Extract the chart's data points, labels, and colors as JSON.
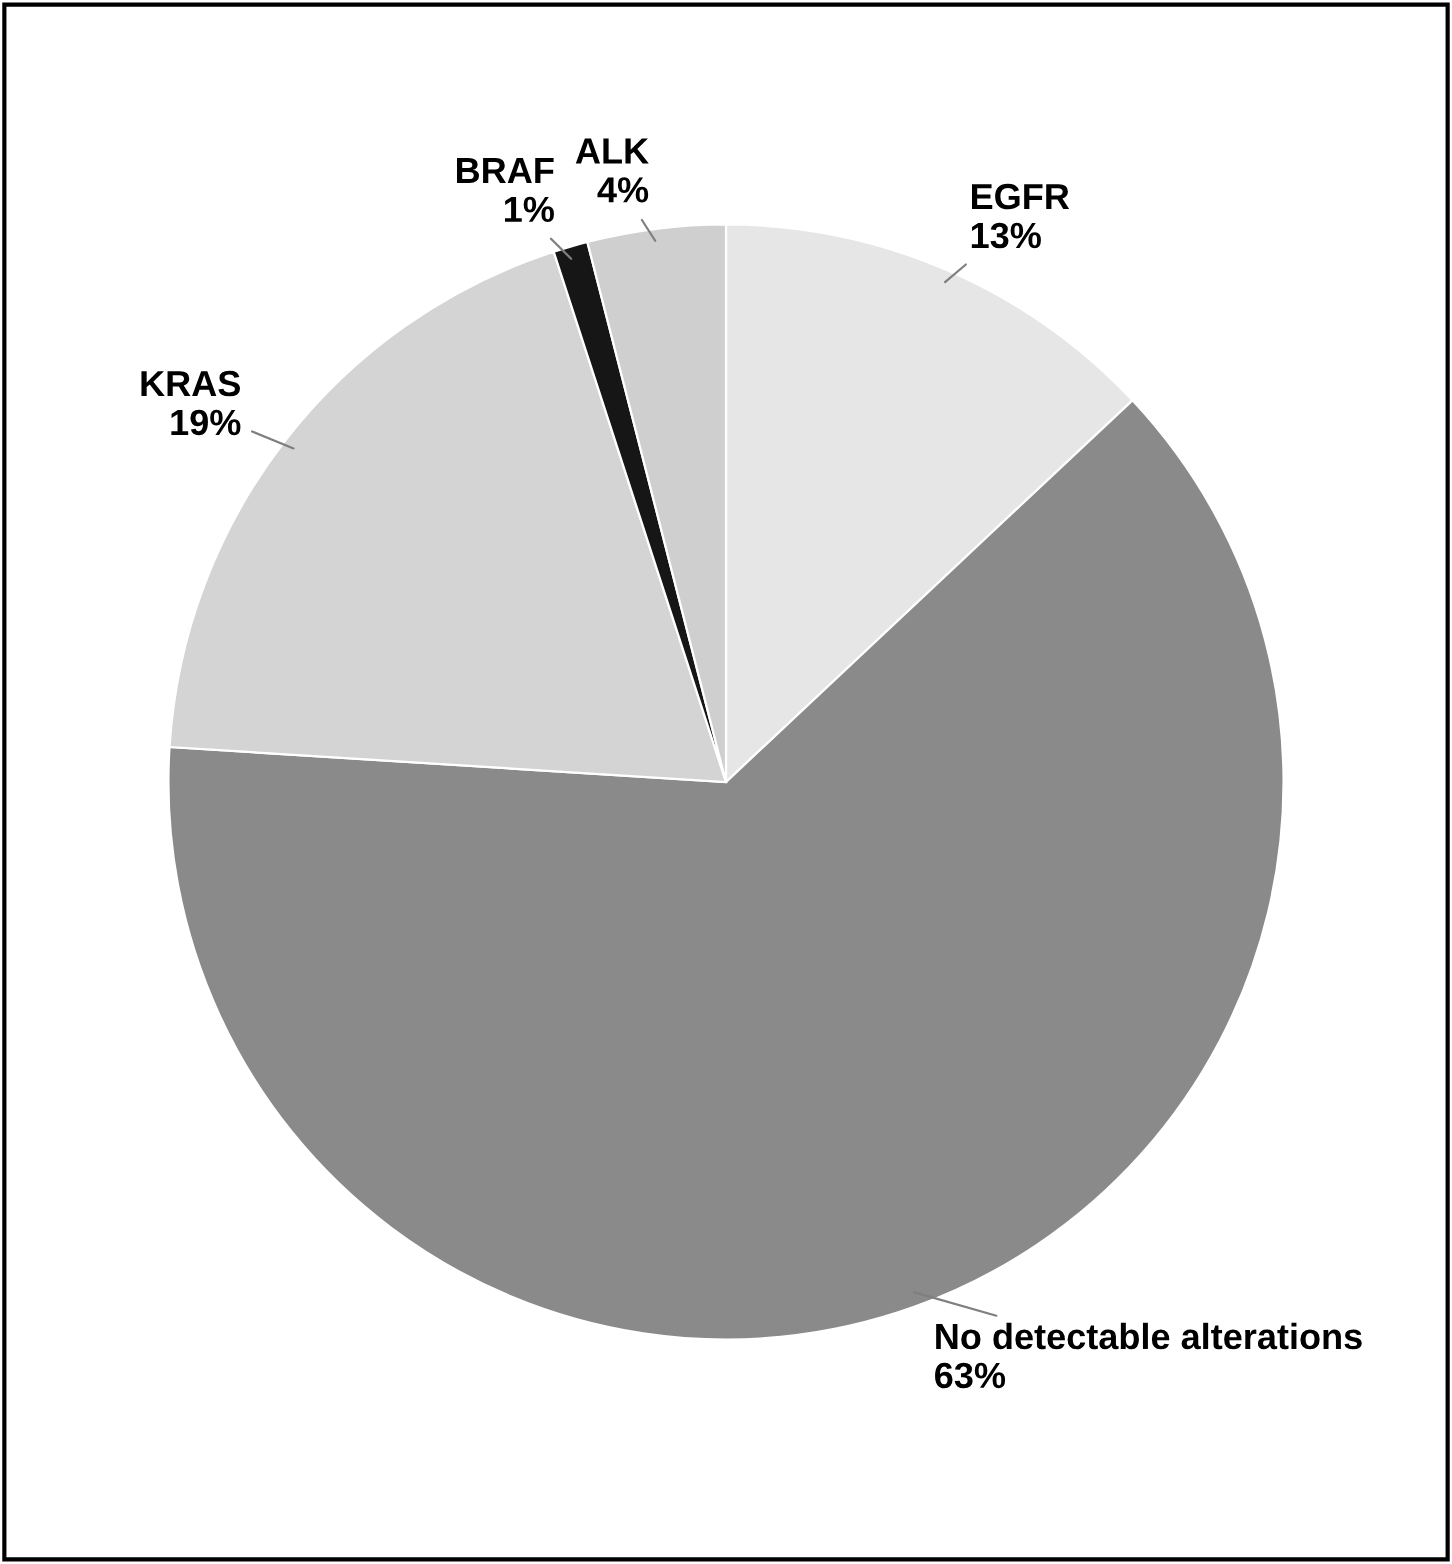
{
  "chart_data": {
    "type": "pie",
    "categories": [
      "EGFR",
      "No detectable alterations",
      "KRAS",
      "BRAF",
      "ALK"
    ],
    "values": [
      13,
      63,
      19,
      1,
      4
    ],
    "value_labels": [
      "13%",
      "63%",
      "19%",
      "1%",
      "4%"
    ],
    "colors": [
      "#e6e6e6",
      "#8a8a8a",
      "#d4d4d4",
      "#161616",
      "#cfcfcf"
    ]
  }
}
